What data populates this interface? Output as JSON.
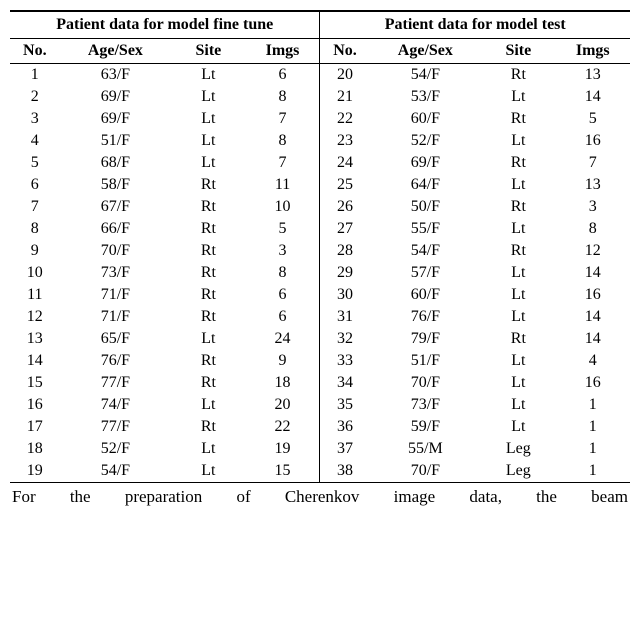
{
  "headers": {
    "group_left": "Patient data for model fine tune",
    "group_right": "Patient data for model test",
    "no": "No.",
    "age": "Age/Sex",
    "site": "Site",
    "imgs": "Imgs"
  },
  "left": [
    {
      "no": "1",
      "age": "63/F",
      "site": "Lt",
      "imgs": "6"
    },
    {
      "no": "2",
      "age": "69/F",
      "site": "Lt",
      "imgs": "8"
    },
    {
      "no": "3",
      "age": "69/F",
      "site": "Lt",
      "imgs": "7"
    },
    {
      "no": "4",
      "age": "51/F",
      "site": "Lt",
      "imgs": "8"
    },
    {
      "no": "5",
      "age": "68/F",
      "site": "Lt",
      "imgs": "7"
    },
    {
      "no": "6",
      "age": "58/F",
      "site": "Rt",
      "imgs": "11"
    },
    {
      "no": "7",
      "age": "67/F",
      "site": "Rt",
      "imgs": "10"
    },
    {
      "no": "8",
      "age": "66/F",
      "site": "Rt",
      "imgs": "5"
    },
    {
      "no": "9",
      "age": "70/F",
      "site": "Rt",
      "imgs": "3"
    },
    {
      "no": "10",
      "age": "73/F",
      "site": "Rt",
      "imgs": "8"
    },
    {
      "no": "11",
      "age": "71/F",
      "site": "Rt",
      "imgs": "6"
    },
    {
      "no": "12",
      "age": "71/F",
      "site": "Rt",
      "imgs": "6"
    },
    {
      "no": "13",
      "age": "65/F",
      "site": "Lt",
      "imgs": "24"
    },
    {
      "no": "14",
      "age": "76/F",
      "site": "Rt",
      "imgs": "9"
    },
    {
      "no": "15",
      "age": "77/F",
      "site": "Rt",
      "imgs": "18"
    },
    {
      "no": "16",
      "age": "74/F",
      "site": "Lt",
      "imgs": "20"
    },
    {
      "no": "17",
      "age": "77/F",
      "site": "Rt",
      "imgs": "22"
    },
    {
      "no": "18",
      "age": "52/F",
      "site": "Lt",
      "imgs": "19"
    },
    {
      "no": "19",
      "age": "54/F",
      "site": "Lt",
      "imgs": "15"
    }
  ],
  "right": [
    {
      "no": "20",
      "age": "54/F",
      "site": "Rt",
      "imgs": "13"
    },
    {
      "no": "21",
      "age": "53/F",
      "site": "Lt",
      "imgs": "14"
    },
    {
      "no": "22",
      "age": "60/F",
      "site": "Rt",
      "imgs": "5"
    },
    {
      "no": "23",
      "age": "52/F",
      "site": "Lt",
      "imgs": "16"
    },
    {
      "no": "24",
      "age": "69/F",
      "site": "Rt",
      "imgs": "7"
    },
    {
      "no": "25",
      "age": "64/F",
      "site": "Lt",
      "imgs": "13"
    },
    {
      "no": "26",
      "age": "50/F",
      "site": "Rt",
      "imgs": "3"
    },
    {
      "no": "27",
      "age": "55/F",
      "site": "Lt",
      "imgs": "8"
    },
    {
      "no": "28",
      "age": "54/F",
      "site": "Rt",
      "imgs": "12"
    },
    {
      "no": "29",
      "age": "57/F",
      "site": "Lt",
      "imgs": "14"
    },
    {
      "no": "30",
      "age": "60/F",
      "site": "Lt",
      "imgs": "16"
    },
    {
      "no": "31",
      "age": "76/F",
      "site": "Lt",
      "imgs": "14"
    },
    {
      "no": "32",
      "age": "79/F",
      "site": "Rt",
      "imgs": "14"
    },
    {
      "no": "33",
      "age": "51/F",
      "site": "Lt",
      "imgs": "4"
    },
    {
      "no": "34",
      "age": "70/F",
      "site": "Lt",
      "imgs": "16"
    },
    {
      "no": "35",
      "age": "73/F",
      "site": "Lt",
      "imgs": "1"
    },
    {
      "no": "36",
      "age": "59/F",
      "site": "Lt",
      "imgs": "1"
    },
    {
      "no": "37",
      "age": "55/M",
      "site": "Leg",
      "imgs": "1"
    },
    {
      "no": "38",
      "age": "70/F",
      "site": "Leg",
      "imgs": "1"
    }
  ],
  "caption": "For the preparation of Cherenkov image data, the beam",
  "style": {
    "font_family": "Times New Roman",
    "font_size_pt": 12,
    "header_fontweight": "bold",
    "border_color": "#000000",
    "background_color": "#ffffff",
    "text_color": "#000000"
  }
}
